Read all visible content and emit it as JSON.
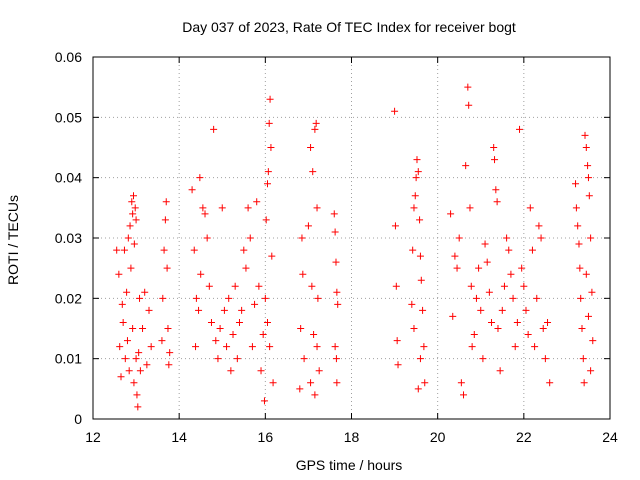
{
  "chart_data": {
    "type": "scatter",
    "title": "Day 037 of 2023, Rate Of TEC Index for receiver bogt",
    "xlabel": "GPS time / hours",
    "ylabel": "ROTI / TECUs",
    "xlim": [
      12,
      24
    ],
    "ylim": [
      0,
      0.06
    ],
    "xticks": [
      "12",
      "14",
      "16",
      "18",
      "20",
      "22",
      "24"
    ],
    "yticks": [
      "0",
      "0.01",
      "0.02",
      "0.03",
      "0.04",
      "0.05",
      "0.06"
    ],
    "grid": true,
    "marker": "plus",
    "color": "#ff0000",
    "series": [
      {
        "name": "ROTI",
        "points": [
          [
            12.55,
            0.028
          ],
          [
            12.6,
            0.024
          ],
          [
            12.62,
            0.012
          ],
          [
            12.65,
            0.007
          ],
          [
            12.68,
            0.019
          ],
          [
            12.7,
            0.016
          ],
          [
            12.73,
            0.028
          ],
          [
            12.75,
            0.01
          ],
          [
            12.78,
            0.021
          ],
          [
            12.8,
            0.013
          ],
          [
            12.82,
            0.03
          ],
          [
            12.84,
            0.008
          ],
          [
            12.86,
            0.032
          ],
          [
            12.88,
            0.025
          ],
          [
            12.9,
            0.036
          ],
          [
            12.92,
            0.034
          ],
          [
            12.94,
            0.037
          ],
          [
            12.96,
            0.029
          ],
          [
            12.98,
            0.035
          ],
          [
            13.0,
            0.033
          ],
          [
            12.92,
            0.015
          ],
          [
            12.95,
            0.006
          ],
          [
            13.0,
            0.01
          ],
          [
            13.02,
            0.004
          ],
          [
            13.04,
            0.002
          ],
          [
            13.06,
            0.011
          ],
          [
            13.08,
            0.02
          ],
          [
            13.1,
            0.008
          ],
          [
            13.15,
            0.015
          ],
          [
            13.2,
            0.021
          ],
          [
            13.25,
            0.009
          ],
          [
            13.3,
            0.018
          ],
          [
            13.35,
            0.012
          ],
          [
            13.6,
            0.013
          ],
          [
            13.62,
            0.02
          ],
          [
            13.65,
            0.028
          ],
          [
            13.68,
            0.033
          ],
          [
            13.7,
            0.036
          ],
          [
            13.72,
            0.025
          ],
          [
            13.74,
            0.015
          ],
          [
            13.76,
            0.009
          ],
          [
            13.78,
            0.011
          ],
          [
            14.3,
            0.038
          ],
          [
            14.35,
            0.028
          ],
          [
            14.38,
            0.012
          ],
          [
            14.4,
            0.02
          ],
          [
            14.45,
            0.018
          ],
          [
            14.48,
            0.04
          ],
          [
            14.5,
            0.024
          ],
          [
            14.55,
            0.035
          ],
          [
            14.6,
            0.034
          ],
          [
            14.65,
            0.03
          ],
          [
            14.7,
            0.022
          ],
          [
            14.75,
            0.016
          ],
          [
            14.8,
            0.048
          ],
          [
            14.85,
            0.013
          ],
          [
            14.9,
            0.01
          ],
          [
            14.95,
            0.015
          ],
          [
            15.0,
            0.035
          ],
          [
            15.05,
            0.018
          ],
          [
            15.1,
            0.012
          ],
          [
            15.15,
            0.02
          ],
          [
            15.2,
            0.008
          ],
          [
            15.25,
            0.014
          ],
          [
            15.3,
            0.022
          ],
          [
            15.35,
            0.01
          ],
          [
            15.4,
            0.016
          ],
          [
            15.45,
            0.018
          ],
          [
            15.5,
            0.028
          ],
          [
            15.55,
            0.025
          ],
          [
            15.6,
            0.035
          ],
          [
            15.65,
            0.03
          ],
          [
            15.7,
            0.012
          ],
          [
            15.75,
            0.019
          ],
          [
            15.8,
            0.036
          ],
          [
            15.85,
            0.022
          ],
          [
            15.9,
            0.008
          ],
          [
            15.95,
            0.014
          ],
          [
            15.98,
            0.003
          ],
          [
            16.0,
            0.02
          ],
          [
            16.02,
            0.033
          ],
          [
            16.05,
            0.039
          ],
          [
            16.07,
            0.041
          ],
          [
            16.09,
            0.049
          ],
          [
            16.11,
            0.053
          ],
          [
            16.13,
            0.045
          ],
          [
            16.05,
            0.016
          ],
          [
            16.1,
            0.012
          ],
          [
            16.15,
            0.027
          ],
          [
            16.18,
            0.006
          ],
          [
            16.8,
            0.005
          ],
          [
            16.82,
            0.015
          ],
          [
            16.85,
            0.03
          ],
          [
            16.87,
            0.024
          ],
          [
            16.9,
            0.01
          ],
          [
            17.0,
            0.032
          ],
          [
            17.05,
            0.045
          ],
          [
            17.1,
            0.041
          ],
          [
            17.15,
            0.048
          ],
          [
            17.18,
            0.049
          ],
          [
            17.2,
            0.035
          ],
          [
            17.22,
            0.02
          ],
          [
            17.25,
            0.008
          ],
          [
            17.12,
            0.014
          ],
          [
            17.08,
            0.022
          ],
          [
            17.05,
            0.006
          ],
          [
            17.15,
            0.004
          ],
          [
            17.2,
            0.012
          ],
          [
            17.6,
            0.034
          ],
          [
            17.62,
            0.031
          ],
          [
            17.64,
            0.026
          ],
          [
            17.66,
            0.021
          ],
          [
            17.68,
            0.019
          ],
          [
            17.62,
            0.012
          ],
          [
            17.65,
            0.01
          ],
          [
            17.66,
            0.006
          ],
          [
            19.0,
            0.051
          ],
          [
            19.02,
            0.032
          ],
          [
            19.04,
            0.022
          ],
          [
            19.06,
            0.013
          ],
          [
            19.08,
            0.009
          ],
          [
            19.4,
            0.019
          ],
          [
            19.42,
            0.028
          ],
          [
            19.45,
            0.035
          ],
          [
            19.48,
            0.037
          ],
          [
            19.5,
            0.04
          ],
          [
            19.52,
            0.043
          ],
          [
            19.55,
            0.041
          ],
          [
            19.58,
            0.033
          ],
          [
            19.6,
            0.027
          ],
          [
            19.62,
            0.023
          ],
          [
            19.65,
            0.018
          ],
          [
            19.68,
            0.012
          ],
          [
            19.7,
            0.006
          ],
          [
            19.55,
            0.005
          ],
          [
            19.6,
            0.01
          ],
          [
            19.45,
            0.015
          ],
          [
            20.3,
            0.034
          ],
          [
            20.35,
            0.017
          ],
          [
            20.4,
            0.027
          ],
          [
            20.45,
            0.025
          ],
          [
            20.5,
            0.03
          ],
          [
            20.55,
            0.006
          ],
          [
            20.6,
            0.004
          ],
          [
            20.65,
            0.042
          ],
          [
            20.7,
            0.055
          ],
          [
            20.72,
            0.052
          ],
          [
            20.75,
            0.035
          ],
          [
            20.78,
            0.022
          ],
          [
            20.8,
            0.012
          ],
          [
            20.85,
            0.014
          ],
          [
            20.9,
            0.02
          ],
          [
            20.95,
            0.025
          ],
          [
            21.0,
            0.018
          ],
          [
            21.05,
            0.01
          ],
          [
            21.1,
            0.029
          ],
          [
            21.15,
            0.026
          ],
          [
            21.2,
            0.021
          ],
          [
            21.25,
            0.016
          ],
          [
            21.3,
            0.045
          ],
          [
            21.32,
            0.043
          ],
          [
            21.35,
            0.038
          ],
          [
            21.38,
            0.036
          ],
          [
            21.4,
            0.015
          ],
          [
            21.45,
            0.008
          ],
          [
            21.5,
            0.018
          ],
          [
            21.55,
            0.022
          ],
          [
            21.6,
            0.03
          ],
          [
            21.65,
            0.028
          ],
          [
            21.7,
            0.024
          ],
          [
            21.75,
            0.02
          ],
          [
            21.8,
            0.012
          ],
          [
            21.85,
            0.016
          ],
          [
            21.9,
            0.048
          ],
          [
            21.95,
            0.025
          ],
          [
            22.0,
            0.022
          ],
          [
            22.05,
            0.018
          ],
          [
            22.1,
            0.014
          ],
          [
            22.15,
            0.035
          ],
          [
            22.2,
            0.028
          ],
          [
            22.25,
            0.012
          ],
          [
            22.3,
            0.02
          ],
          [
            22.35,
            0.032
          ],
          [
            22.4,
            0.03
          ],
          [
            22.45,
            0.015
          ],
          [
            22.5,
            0.01
          ],
          [
            22.55,
            0.016
          ],
          [
            22.6,
            0.006
          ],
          [
            23.2,
            0.039
          ],
          [
            23.22,
            0.035
          ],
          [
            23.25,
            0.032
          ],
          [
            23.28,
            0.029
          ],
          [
            23.3,
            0.025
          ],
          [
            23.32,
            0.02
          ],
          [
            23.35,
            0.015
          ],
          [
            23.38,
            0.01
          ],
          [
            23.4,
            0.006
          ],
          [
            23.42,
            0.047
          ],
          [
            23.45,
            0.045
          ],
          [
            23.48,
            0.042
          ],
          [
            23.5,
            0.04
          ],
          [
            23.52,
            0.037
          ],
          [
            23.55,
            0.03
          ],
          [
            23.58,
            0.021
          ],
          [
            23.6,
            0.013
          ],
          [
            23.45,
            0.024
          ],
          [
            23.5,
            0.017
          ],
          [
            23.55,
            0.008
          ]
        ]
      }
    ]
  }
}
